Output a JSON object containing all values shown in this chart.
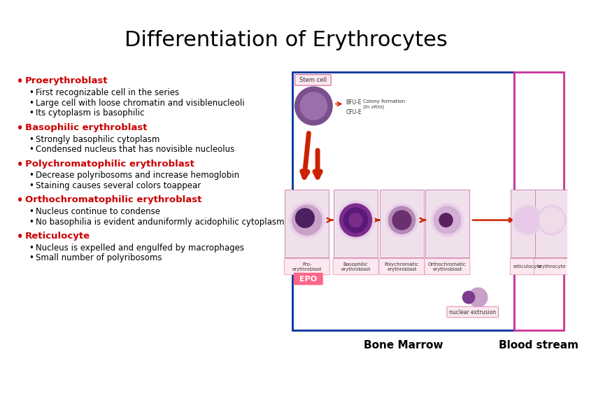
{
  "title": "Differentiation of Erythrocytes",
  "title_fontsize": 22,
  "title_color": "#000000",
  "background_color": "#ffffff",
  "bullet_color": "#cc0000",
  "sub_bullet_color": "#000000",
  "sections": [
    {
      "heading": "Proerythroblast",
      "sub_items": [
        "First recognizable cell in the series",
        "Large cell with loose chromatin and visiblenucleoli",
        "Its cytoplasm is basophilic"
      ]
    },
    {
      "heading": "Basophilic erythroblast",
      "sub_items": [
        "Strongly basophilic cytoplasm",
        "Condensed nucleus that has novisible nucleolus"
      ]
    },
    {
      "heading": "Polychromatophilic erythroblast",
      "sub_items": [
        "Decrease polyribosoms and increase hemoglobin",
        "Staining causes several colors toappear"
      ]
    },
    {
      "heading": "Orthochromatophilic erythroblast",
      "sub_items": [
        "Nucleus continue to condense",
        "No basophilia is evident anduniformly acidophilic cytoplasm"
      ]
    },
    {
      "heading": "Reticulocyte",
      "sub_items": [
        "Nucleus is expelled and engulfed by macrophages",
        "Small number of polyribosoms"
      ]
    }
  ],
  "heading_fontsize": 9.5,
  "sub_fontsize": 8.5,
  "blue_box_color": "#003399",
  "pink_box_color": "#cc3399",
  "cell_labels": [
    "Pro-\nerythroblast",
    "Basophilic\nerythroblast",
    "Polychromatic\nerythroblast",
    "Orthochromatic\nerythroblast",
    "reticulocyte",
    "erythrocyte"
  ],
  "cell_colors": [
    "#c8a0c8",
    "#7b2d8b",
    "#b48ab4",
    "#d4b0d4",
    "#e8c8e8",
    "#f0dce8"
  ],
  "epo_color": "#ff6666",
  "bone_marrow_label": "Bone Marrow",
  "blood_stream_label": "Blood stream"
}
